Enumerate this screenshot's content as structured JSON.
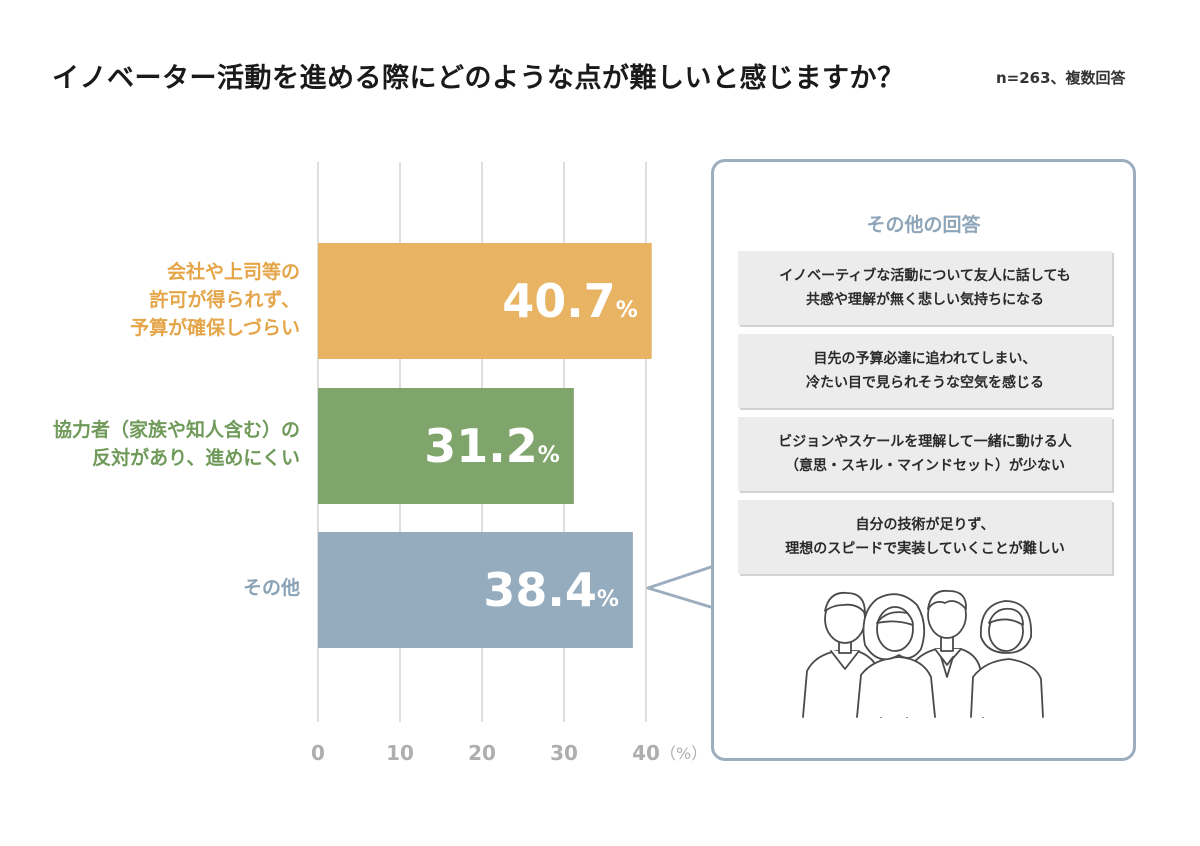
{
  "header": {
    "title": "イノベーター活動を進める際にどのような点が難しいと感じますか？",
    "sample": "n=263、複数回答"
  },
  "colors": {
    "bar1": "#e8b463",
    "bar2": "#7fa56c",
    "bar3": "#95abbe",
    "grid": "#d4d4d4",
    "axis_text": "#aeaeae"
  },
  "chart_data": {
    "type": "bar",
    "orientation": "horizontal",
    "categories": [
      "会社や上司等の\n許可が得られず、\n予算が確保しづらい",
      "協力者（家族や知人含む）の\n反対があり、進めにくい",
      "その他"
    ],
    "values": [
      40.7,
      31.2,
      38.4
    ],
    "value_labels": [
      "40.7",
      "31.2",
      "38.4"
    ],
    "value_unit": "%",
    "xticks": [
      "0",
      "10",
      "20",
      "30",
      "40"
    ],
    "xunit": "（%）",
    "xlim": [
      0,
      40
    ],
    "grid": true
  },
  "other_answers": {
    "title": "その他の回答",
    "items": [
      "イノベーティブな活動について友人に話しても\n共感や理解が無く悲しい気持ちになる",
      "目先の予算必達に追われてしまい、\n冷たい目で見られそうな空気を感じる",
      "ビジョンやスケールを理解して一緒に動ける人\n（意思・スキル・マインドセット）が少ない",
      "自分の技術が足りず、\n理想のスピードで実装していくことが難しい"
    ]
  },
  "illustration": {
    "icon": "four-people-illustration"
  }
}
